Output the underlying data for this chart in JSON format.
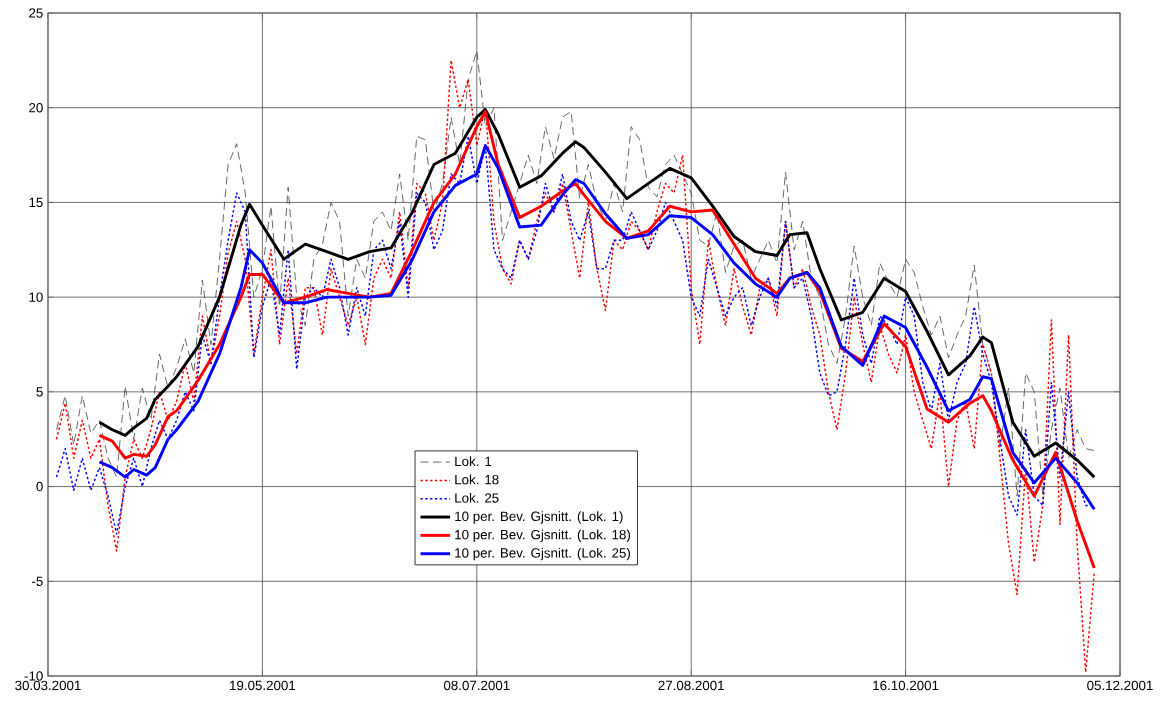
{
  "chart_data": {
    "type": "line",
    "x": [
      "2001-04-01",
      "2001-04-03",
      "2001-04-05",
      "2001-04-07",
      "2001-04-09",
      "2001-04-11",
      "2001-04-13",
      "2001-04-15",
      "2001-04-17",
      "2001-04-19",
      "2001-04-21",
      "2001-04-23",
      "2001-04-25",
      "2001-04-27",
      "2001-04-29",
      "2001-05-01",
      "2001-05-03",
      "2001-05-05",
      "2001-05-07",
      "2001-05-09",
      "2001-05-11",
      "2001-05-13",
      "2001-05-15",
      "2001-05-17",
      "2001-05-19",
      "2001-05-21",
      "2001-05-23",
      "2001-05-25",
      "2001-05-27",
      "2001-05-29",
      "2001-05-31",
      "2001-06-02",
      "2001-06-04",
      "2001-06-06",
      "2001-06-08",
      "2001-06-10",
      "2001-06-12",
      "2001-06-14",
      "2001-06-16",
      "2001-06-18",
      "2001-06-20",
      "2001-06-22",
      "2001-06-24",
      "2001-06-26",
      "2001-06-28",
      "2001-06-30",
      "2001-07-02",
      "2001-07-04",
      "2001-07-06",
      "2001-07-08",
      "2001-07-10",
      "2001-07-12",
      "2001-07-14",
      "2001-07-16",
      "2001-07-18",
      "2001-07-20",
      "2001-07-22",
      "2001-07-24",
      "2001-07-26",
      "2001-07-28",
      "2001-07-30",
      "2001-08-01",
      "2001-08-03",
      "2001-08-05",
      "2001-08-07",
      "2001-08-09",
      "2001-08-11",
      "2001-08-13",
      "2001-08-15",
      "2001-08-17",
      "2001-08-19",
      "2001-08-21",
      "2001-08-23",
      "2001-08-25",
      "2001-08-27",
      "2001-08-29",
      "2001-08-31",
      "2001-09-02",
      "2001-09-04",
      "2001-09-06",
      "2001-09-08",
      "2001-09-10",
      "2001-09-12",
      "2001-09-14",
      "2001-09-16",
      "2001-09-18",
      "2001-09-20",
      "2001-09-22",
      "2001-09-24",
      "2001-09-26",
      "2001-09-28",
      "2001-09-30",
      "2001-10-02",
      "2001-10-04",
      "2001-10-06",
      "2001-10-08",
      "2001-10-10",
      "2001-10-12",
      "2001-10-14",
      "2001-10-16",
      "2001-10-18",
      "2001-10-20",
      "2001-10-22",
      "2001-10-24",
      "2001-10-26",
      "2001-10-28",
      "2001-10-30",
      "2001-11-01",
      "2001-11-03",
      "2001-11-05",
      "2001-11-07",
      "2001-11-09",
      "2001-11-11",
      "2001-11-13",
      "2001-11-15",
      "2001-11-17",
      "2001-11-19",
      "2001-11-21",
      "2001-11-23",
      "2001-11-25",
      "2001-11-27",
      "2001-11-29"
    ],
    "series": [
      {
        "name": "Lok. 1",
        "color": "#404040",
        "line_style": "dashed",
        "values": [
          3.0,
          4.8,
          2.2,
          4.8,
          2.8,
          3.5,
          1.5,
          0.5,
          5.3,
          2.5,
          5.2,
          3.5,
          7.0,
          5.2,
          6.3,
          7.8,
          6.0,
          10.9,
          7.5,
          12.0,
          17.0,
          18.1,
          15.5,
          10.0,
          11.5,
          14.8,
          9.5,
          15.8,
          10.0,
          8.5,
          12.0,
          12.8,
          15.0,
          14.0,
          9.0,
          12.0,
          11.0,
          14.0,
          14.5,
          13.5,
          16.5,
          13.0,
          18.5,
          18.3,
          14.5,
          16.0,
          19.5,
          17.0,
          21.5,
          23.0,
          19.0,
          20.0,
          13.0,
          14.5,
          16.0,
          17.5,
          16.0,
          19.0,
          17.3,
          19.5,
          19.8,
          15.2,
          17.0,
          15.0,
          14.0,
          16.0,
          14.5,
          19.0,
          18.3,
          15.8,
          15.3,
          17.0,
          17.5,
          16.5,
          15.5,
          13.0,
          12.7,
          14.5,
          11.3,
          12.7,
          13.0,
          11.0,
          12.0,
          13.0,
          11.8,
          16.6,
          12.5,
          14.0,
          11.0,
          10.0,
          7.5,
          6.5,
          9.0,
          12.7,
          10.0,
          8.5,
          11.8,
          10.8,
          10.0,
          12.0,
          11.3,
          9.5,
          8.0,
          9.0,
          6.8,
          8.0,
          9.0,
          11.7,
          7.5,
          6.0,
          2.0,
          5.2,
          -0.5,
          6.0,
          5.0,
          -0.5,
          3.0,
          5.2,
          1.5,
          3.0,
          2.0,
          1.9
        ]
      },
      {
        "name": "Lok. 18",
        "color": "#ff0000",
        "line_style": "dotted",
        "values": [
          2.5,
          4.4,
          1.5,
          3.5,
          1.5,
          2.5,
          -1.0,
          -3.4,
          0.5,
          2.5,
          1.5,
          3.0,
          5.0,
          3.5,
          4.5,
          6.5,
          4.5,
          9.0,
          6.5,
          9.0,
          12.3,
          14.0,
          12.0,
          7.0,
          10.0,
          12.5,
          7.5,
          11.0,
          7.0,
          10.5,
          10.5,
          8.0,
          11.5,
          10.0,
          8.5,
          10.0,
          7.5,
          11.0,
          12.0,
          11.0,
          14.5,
          10.5,
          16.0,
          15.5,
          13.0,
          15.0,
          22.5,
          20.0,
          21.5,
          18.0,
          20.0,
          14.0,
          11.5,
          10.7,
          13.0,
          12.0,
          14.0,
          15.5,
          14.5,
          16.0,
          13.5,
          11.0,
          15.0,
          11.5,
          9.3,
          13.0,
          12.5,
          14.0,
          13.5,
          12.5,
          14.5,
          16.0,
          15.5,
          17.5,
          10.5,
          7.5,
          13.0,
          10.5,
          8.5,
          11.5,
          9.5,
          8.0,
          10.5,
          11.0,
          9.0,
          14.0,
          10.5,
          11.5,
          9.5,
          8.0,
          5.0,
          3.0,
          6.0,
          10.0,
          7.5,
          5.5,
          8.5,
          7.0,
          6.0,
          8.0,
          5.0,
          3.5,
          2.0,
          5.0,
          0.0,
          3.5,
          4.5,
          2.0,
          7.5,
          6.0,
          1.5,
          -3.0,
          -5.7,
          1.0,
          -4.0,
          -1.0,
          8.8,
          -2.0,
          8.0,
          -3.0,
          -9.8,
          -4.5
        ]
      },
      {
        "name": "Lok. 25",
        "color": "#0000ff",
        "line_style": "dotted",
        "values": [
          0.5,
          2.0,
          -0.2,
          1.5,
          -0.2,
          1.0,
          -0.5,
          -2.5,
          0.0,
          1.5,
          0.0,
          2.0,
          3.5,
          2.5,
          3.5,
          5.0,
          4.0,
          8.0,
          6.5,
          10.0,
          13.0,
          15.5,
          14.5,
          6.8,
          9.5,
          11.0,
          8.0,
          12.5,
          6.2,
          10.0,
          10.5,
          10.0,
          12.0,
          10.5,
          8.0,
          10.5,
          9.0,
          12.5,
          13.0,
          11.5,
          14.0,
          10.0,
          15.5,
          15.0,
          12.5,
          13.5,
          16.5,
          16.0,
          18.5,
          16.0,
          18.0,
          12.5,
          11.5,
          11.0,
          13.0,
          12.0,
          13.5,
          16.0,
          14.5,
          16.5,
          14.0,
          13.0,
          14.5,
          11.5,
          11.5,
          13.0,
          13.0,
          14.5,
          13.5,
          12.5,
          13.5,
          15.0,
          14.0,
          13.0,
          10.0,
          9.0,
          12.0,
          10.5,
          9.0,
          10.0,
          10.5,
          8.5,
          10.0,
          11.0,
          9.5,
          14.0,
          10.5,
          11.0,
          9.0,
          6.0,
          4.8,
          5.0,
          7.5,
          11.0,
          8.0,
          6.5,
          9.0,
          8.5,
          7.5,
          10.0,
          9.0,
          5.5,
          4.0,
          6.5,
          3.5,
          5.5,
          6.5,
          9.5,
          7.0,
          5.5,
          2.5,
          -0.5,
          -1.5,
          3.0,
          -0.5,
          -1.0,
          5.5,
          0.5,
          5.0,
          0.5,
          -1.0,
          -1.0
        ]
      },
      {
        "name": "10 per. Bev. Gjsnitt. (Lok. 1)",
        "color": "#000000",
        "line_style": "solid",
        "x": [
          "2001-04-11",
          "2001-04-14",
          "2001-04-17",
          "2001-04-19",
          "2001-04-22",
          "2001-04-24",
          "2001-04-27",
          "2001-04-29",
          "2001-05-04",
          "2001-05-09",
          "2001-05-14",
          "2001-05-16",
          "2001-05-19",
          "2001-05-24",
          "2001-05-29",
          "2001-06-03",
          "2001-06-08",
          "2001-06-13",
          "2001-06-18",
          "2001-06-23",
          "2001-06-28",
          "2001-07-03",
          "2001-07-08",
          "2001-07-10",
          "2001-07-13",
          "2001-07-18",
          "2001-07-23",
          "2001-07-28",
          "2001-07-31",
          "2001-08-02",
          "2001-08-07",
          "2001-08-12",
          "2001-08-17",
          "2001-08-22",
          "2001-08-27",
          "2001-09-01",
          "2001-09-06",
          "2001-09-11",
          "2001-09-16",
          "2001-09-19",
          "2001-09-23",
          "2001-09-26",
          "2001-10-01",
          "2001-10-06",
          "2001-10-11",
          "2001-10-16",
          "2001-10-21",
          "2001-10-26",
          "2001-10-31",
          "2001-11-03",
          "2001-11-05",
          "2001-11-10",
          "2001-11-15",
          "2001-11-20",
          "2001-11-25",
          "2001-11-29"
        ],
        "values": [
          3.4,
          3.0,
          2.7,
          3.1,
          3.6,
          4.6,
          5.3,
          5.8,
          7.4,
          10.0,
          13.8,
          14.9,
          13.8,
          12.0,
          12.8,
          12.4,
          12.0,
          12.4,
          12.6,
          14.5,
          17.0,
          17.6,
          19.5,
          19.9,
          18.6,
          15.8,
          16.4,
          17.6,
          18.2,
          17.9,
          16.6,
          15.2,
          16.0,
          16.8,
          16.3,
          14.8,
          13.2,
          12.4,
          12.2,
          13.3,
          13.4,
          11.5,
          8.8,
          9.2,
          11.0,
          10.3,
          8.2,
          5.9,
          6.9,
          7.9,
          7.6,
          3.4,
          1.6,
          2.3,
          1.4,
          0.5
        ]
      },
      {
        "name": "10 per. Bev. Gjsnitt. (Lok. 18)",
        "color": "#ff0000",
        "line_style": "solid",
        "x": [
          "2001-04-11",
          "2001-04-14",
          "2001-04-17",
          "2001-04-19",
          "2001-04-22",
          "2001-04-24",
          "2001-04-27",
          "2001-04-29",
          "2001-05-04",
          "2001-05-09",
          "2001-05-14",
          "2001-05-16",
          "2001-05-19",
          "2001-05-24",
          "2001-05-29",
          "2001-06-03",
          "2001-06-08",
          "2001-06-13",
          "2001-06-18",
          "2001-06-23",
          "2001-06-28",
          "2001-07-03",
          "2001-07-08",
          "2001-07-10",
          "2001-07-13",
          "2001-07-18",
          "2001-07-23",
          "2001-07-28",
          "2001-07-31",
          "2001-08-02",
          "2001-08-07",
          "2001-08-12",
          "2001-08-17",
          "2001-08-22",
          "2001-08-27",
          "2001-09-01",
          "2001-09-06",
          "2001-09-11",
          "2001-09-16",
          "2001-09-19",
          "2001-09-23",
          "2001-09-26",
          "2001-10-01",
          "2001-10-06",
          "2001-10-11",
          "2001-10-16",
          "2001-10-21",
          "2001-10-26",
          "2001-10-31",
          "2001-11-03",
          "2001-11-05",
          "2001-11-10",
          "2001-11-15",
          "2001-11-20",
          "2001-11-25",
          "2001-11-29"
        ],
        "values": [
          2.7,
          2.4,
          1.5,
          1.7,
          1.6,
          2.2,
          3.7,
          4.0,
          5.6,
          7.5,
          10.0,
          11.2,
          11.2,
          9.7,
          10.0,
          10.4,
          10.2,
          10.0,
          10.2,
          12.5,
          15.0,
          16.5,
          19.0,
          19.8,
          17.0,
          14.2,
          14.8,
          15.6,
          16.0,
          15.4,
          14.0,
          13.1,
          13.5,
          14.8,
          14.5,
          14.6,
          12.8,
          11.0,
          10.2,
          11.0,
          11.3,
          10.3,
          7.3,
          6.6,
          8.6,
          7.4,
          4.1,
          3.4,
          4.4,
          4.8,
          4.0,
          1.4,
          -0.5,
          1.8,
          -1.8,
          -4.3
        ]
      },
      {
        "name": "10 per. Bev. Gjsnitt. (Lok. 25)",
        "color": "#0000ff",
        "line_style": "solid",
        "x": [
          "2001-04-11",
          "2001-04-14",
          "2001-04-17",
          "2001-04-19",
          "2001-04-22",
          "2001-04-24",
          "2001-04-27",
          "2001-04-29",
          "2001-05-04",
          "2001-05-09",
          "2001-05-14",
          "2001-05-16",
          "2001-05-19",
          "2001-05-24",
          "2001-05-29",
          "2001-06-03",
          "2001-06-08",
          "2001-06-13",
          "2001-06-18",
          "2001-06-23",
          "2001-06-28",
          "2001-07-03",
          "2001-07-08",
          "2001-07-10",
          "2001-07-13",
          "2001-07-18",
          "2001-07-23",
          "2001-07-28",
          "2001-07-31",
          "2001-08-02",
          "2001-08-07",
          "2001-08-12",
          "2001-08-17",
          "2001-08-22",
          "2001-08-27",
          "2001-09-01",
          "2001-09-06",
          "2001-09-11",
          "2001-09-16",
          "2001-09-19",
          "2001-09-23",
          "2001-09-26",
          "2001-10-01",
          "2001-10-06",
          "2001-10-11",
          "2001-10-16",
          "2001-10-21",
          "2001-10-26",
          "2001-10-31",
          "2001-11-03",
          "2001-11-05",
          "2001-11-10",
          "2001-11-15",
          "2001-11-20",
          "2001-11-25",
          "2001-11-29"
        ],
        "values": [
          1.3,
          1.0,
          0.5,
          0.9,
          0.6,
          1.0,
          2.5,
          3.0,
          4.5,
          7.0,
          10.5,
          12.5,
          11.8,
          9.7,
          9.7,
          10.0,
          10.0,
          10.0,
          10.1,
          12.0,
          14.5,
          15.9,
          16.5,
          18.0,
          16.8,
          13.7,
          13.8,
          15.4,
          16.2,
          16.0,
          14.4,
          13.1,
          13.3,
          14.3,
          14.2,
          13.3,
          11.8,
          10.7,
          10.0,
          11.0,
          11.3,
          10.5,
          7.4,
          6.4,
          9.0,
          8.4,
          6.3,
          4.0,
          4.6,
          5.8,
          5.7,
          1.8,
          0.2,
          1.5,
          0.2,
          -1.2
        ]
      }
    ],
    "xlim": [
      "2001-03-30",
      "2001-12-05"
    ],
    "xticks": [
      {
        "value": "2001-03-30",
        "label": "30.03.2001"
      },
      {
        "value": "2001-05-19",
        "label": "19.05.2001"
      },
      {
        "value": "2001-07-08",
        "label": "08.07.2001"
      },
      {
        "value": "2001-08-27",
        "label": "27.08.2001"
      },
      {
        "value": "2001-10-16",
        "label": "16.10.2001"
      },
      {
        "value": "2001-12-05",
        "label": "05.12.2001"
      }
    ],
    "ylim": [
      -10,
      25
    ],
    "yticks": [
      -10,
      -5,
      0,
      5,
      10,
      15,
      20,
      25
    ],
    "grid": true,
    "legend": "bottom"
  }
}
